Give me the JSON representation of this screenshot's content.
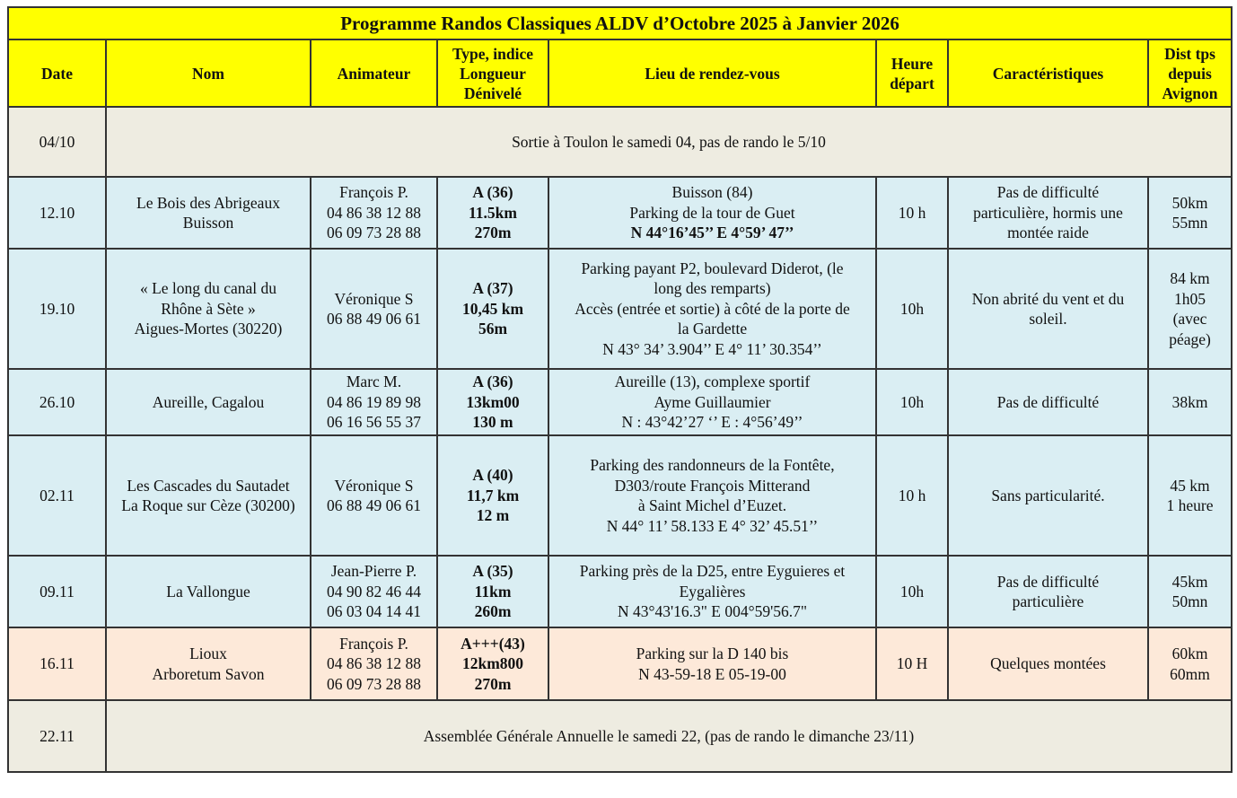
{
  "title": "Programme Randos Classiques ALDV d’Octobre 2025 à Janvier 2026",
  "headers": [
    "Date",
    "Nom",
    "Animateur",
    "Type, indice\nLongueur\nDénivelé",
    "Lieu de rendez-vous",
    "Heure\ndépart",
    "Caractéristiques",
    "Dist tps\ndepuis\nAvignon"
  ],
  "colors": {
    "header": "#ffff00",
    "special": "#eeece1",
    "blue": "#daeef3",
    "peach": "#fde9d9"
  },
  "rows": [
    {
      "kind": "special",
      "date": "04/10",
      "text": "Sortie à Toulon le samedi 04, pas de rando le 5/10"
    },
    {
      "kind": "blue",
      "date": "12.10",
      "nom": "Le Bois des Abrigeaux\nBuisson",
      "animateur": "François P.\n04 86 38 12 88\n06 09 73 28 88",
      "type": "A (36)\n11.5km\n270m",
      "lieu": "Buisson (84)\nParking de la tour de Guet",
      "lieu_gps": "N 44°16’45’’ E 4°59’ 47’’",
      "heure": "10 h",
      "carac": "Pas de difficulté\nparticulière, hormis une\nmontée raide",
      "dist": "50km\n55mn"
    },
    {
      "kind": "blue",
      "date": "19.10",
      "nom": "« Le long du canal du\nRhône à Sète »\nAigues-Mortes (30220)",
      "animateur": "Véronique S\n06 88 49 06 61",
      "type": "A (37)\n10,45 km\n56m",
      "lieu": "Parking payant P2, boulevard Diderot, (le\nlong des remparts)\nAccès (entrée et sortie) à côté de la porte de\nla Gardette\nN 43° 34’ 3.904’’ E 4° 11’ 30.354’’",
      "heure": "10h",
      "carac": "Non abrité du vent et du\nsoleil.",
      "dist": "84 km\n1h05\n(avec\npéage)"
    },
    {
      "kind": "blue",
      "date": "26.10",
      "nom": "Aureille, Cagalou",
      "animateur": "Marc M.\n04 86 19 89 98\n06 16 56 55 37",
      "type": "A (36)\n13km00\n130 m",
      "lieu": "Aureille (13), complexe sportif\nAyme Guillaumier\nN : 43°42’27 ‘’    E : 4°56’49’’",
      "heure": "10h",
      "carac": "Pas de difficulté",
      "dist": "38km"
    },
    {
      "kind": "blue",
      "date": "02.11",
      "nom": "Les Cascades du Sautadet\nLa Roque sur Cèze (30200)",
      "animateur": "Véronique S\n06 88 49 06 61",
      "type": "A (40)\n11,7 km\n12 m",
      "lieu": "Parking des randonneurs de la Fontête,\nD303/route François Mitterand\nà Saint Michel d’Euzet.\nN 44° 11’ 58.133 E 4° 32’ 45.51’’",
      "heure": "10 h",
      "carac": "Sans particularité.",
      "dist": "45 km\n1 heure"
    },
    {
      "kind": "blue",
      "date": "09.11",
      "nom": "La Vallongue",
      "animateur": "Jean-Pierre P.\n04 90 82 46 44\n06 03 04 14 41",
      "type": "A (35)\n11km\n260m",
      "lieu": "Parking près de la D25, entre Eyguieres et\nEygalières\nN 43°43'16.3\"  E 004°59'56.7\"",
      "heure": "10h",
      "carac": "Pas de difficulté\nparticulière",
      "dist": "45km\n50mn"
    },
    {
      "kind": "peach",
      "date": "16.11",
      "nom": "Lioux\nArboretum Savon",
      "animateur": "François P.\n04 86 38 12 88\n06 09 73 28 88",
      "type": "A+++(43)\n12km800\n270m",
      "lieu": "Parking sur la D 140 bis\nN 43-59-18 E 05-19-00",
      "heure": "10 H",
      "carac": "Quelques montées",
      "dist": "60km\n60mm"
    },
    {
      "kind": "special",
      "date": "22.11",
      "text": "Assemblée Générale Annuelle le samedi 22, (pas de rando le dimanche 23/11)"
    }
  ]
}
